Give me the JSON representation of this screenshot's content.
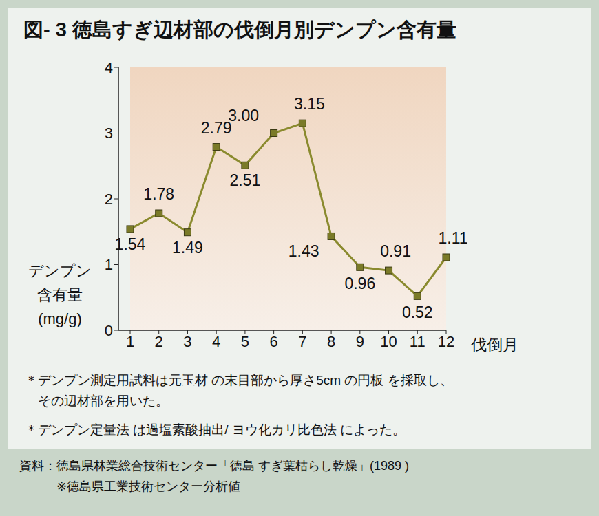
{
  "chart_data": {
    "type": "line",
    "title": "図- 3 徳島すぎ辺材部の伐倒月別デンプン含有量",
    "categories": [
      "1",
      "2",
      "3",
      "4",
      "5",
      "6",
      "7",
      "8",
      "9",
      "10",
      "11",
      "12"
    ],
    "values": [
      1.54,
      1.78,
      1.49,
      2.79,
      2.51,
      3.0,
      3.15,
      1.43,
      0.96,
      0.91,
      0.52,
      1.11
    ],
    "value_labels": [
      "1.54",
      "1.78",
      "1.49",
      "2.79",
      "2.51",
      "3.00",
      "3.15",
      "1.43",
      "0.96",
      "0.91",
      "0.52",
      "1.11"
    ],
    "color": "#8a8a2e",
    "marker": "square",
    "ylabel": [
      "デンプン",
      "含有量",
      "(mg/g)"
    ],
    "xlabel": "伐倒月",
    "ylim": [
      0,
      4
    ],
    "yticks": [
      0,
      1,
      2,
      3,
      4
    ],
    "grid": false,
    "data_labels": true,
    "notes": [
      "＊デンプン測定用試料は元玉材 の末目部から厚さ5cm の円板 を採取し、",
      "　その辺材部を用いた。",
      "＊デンプン定量法 は過塩素酸抽出/ ヨウ化カリ比色法 によった。"
    ],
    "source": [
      "資料：徳島県林業総合技術センター「徳島 すぎ葉枯らし乾燥」(1989 )",
      "　　　※徳島県工業技術センター分析値"
    ]
  }
}
